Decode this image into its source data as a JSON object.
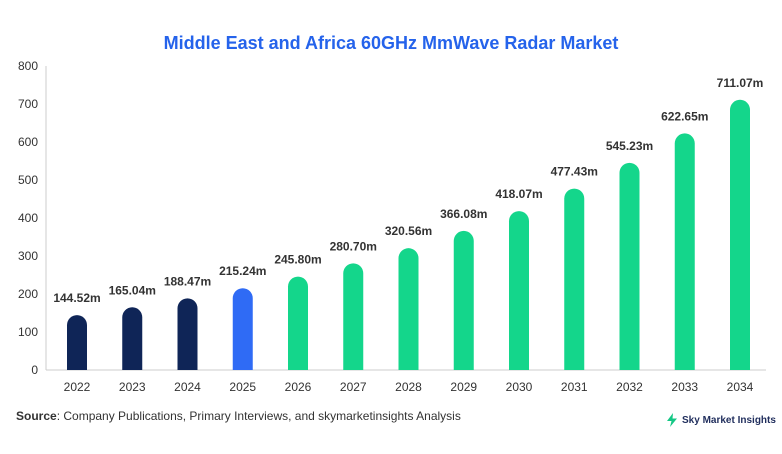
{
  "chart_data": {
    "type": "bar",
    "title": "Middle East and Africa 60GHz MmWave Radar Market",
    "categories": [
      "2022",
      "2023",
      "2024",
      "2025",
      "2026",
      "2027",
      "2028",
      "2029",
      "2030",
      "2031",
      "2032",
      "2033",
      "2034"
    ],
    "values": [
      144.52,
      165.04,
      188.47,
      215.24,
      245.8,
      280.7,
      320.56,
      366.08,
      418.07,
      477.43,
      545.23,
      622.65,
      711.07
    ],
    "data_labels": [
      "144.52m",
      "165.04m",
      "188.47m",
      "215.24m",
      "245.80m",
      "280.70m",
      "320.56m",
      "366.08m",
      "418.07m",
      "477.43m",
      "545.23m",
      "622.65m",
      "711.07m"
    ],
    "ylim": [
      0,
      800
    ],
    "yticks": [
      0,
      100,
      200,
      300,
      400,
      500,
      600,
      700,
      800
    ],
    "xlabel": "",
    "ylabel": "",
    "grid": false,
    "colors": {
      "historical": "#0f2557",
      "base_year": "#2f6bf5",
      "forecast": "#14d68b"
    },
    "bar_color_groups": [
      "historical",
      "historical",
      "historical",
      "base_year",
      "forecast",
      "forecast",
      "forecast",
      "forecast",
      "forecast",
      "forecast",
      "forecast",
      "forecast",
      "forecast"
    ]
  },
  "footer": {
    "source_label": "Source",
    "source_text": ": Company Publications, Primary Interviews, and skymarketinsights Analysis",
    "brand": "Sky Market Insights",
    "brand_icon": "lightning-logo-icon"
  }
}
